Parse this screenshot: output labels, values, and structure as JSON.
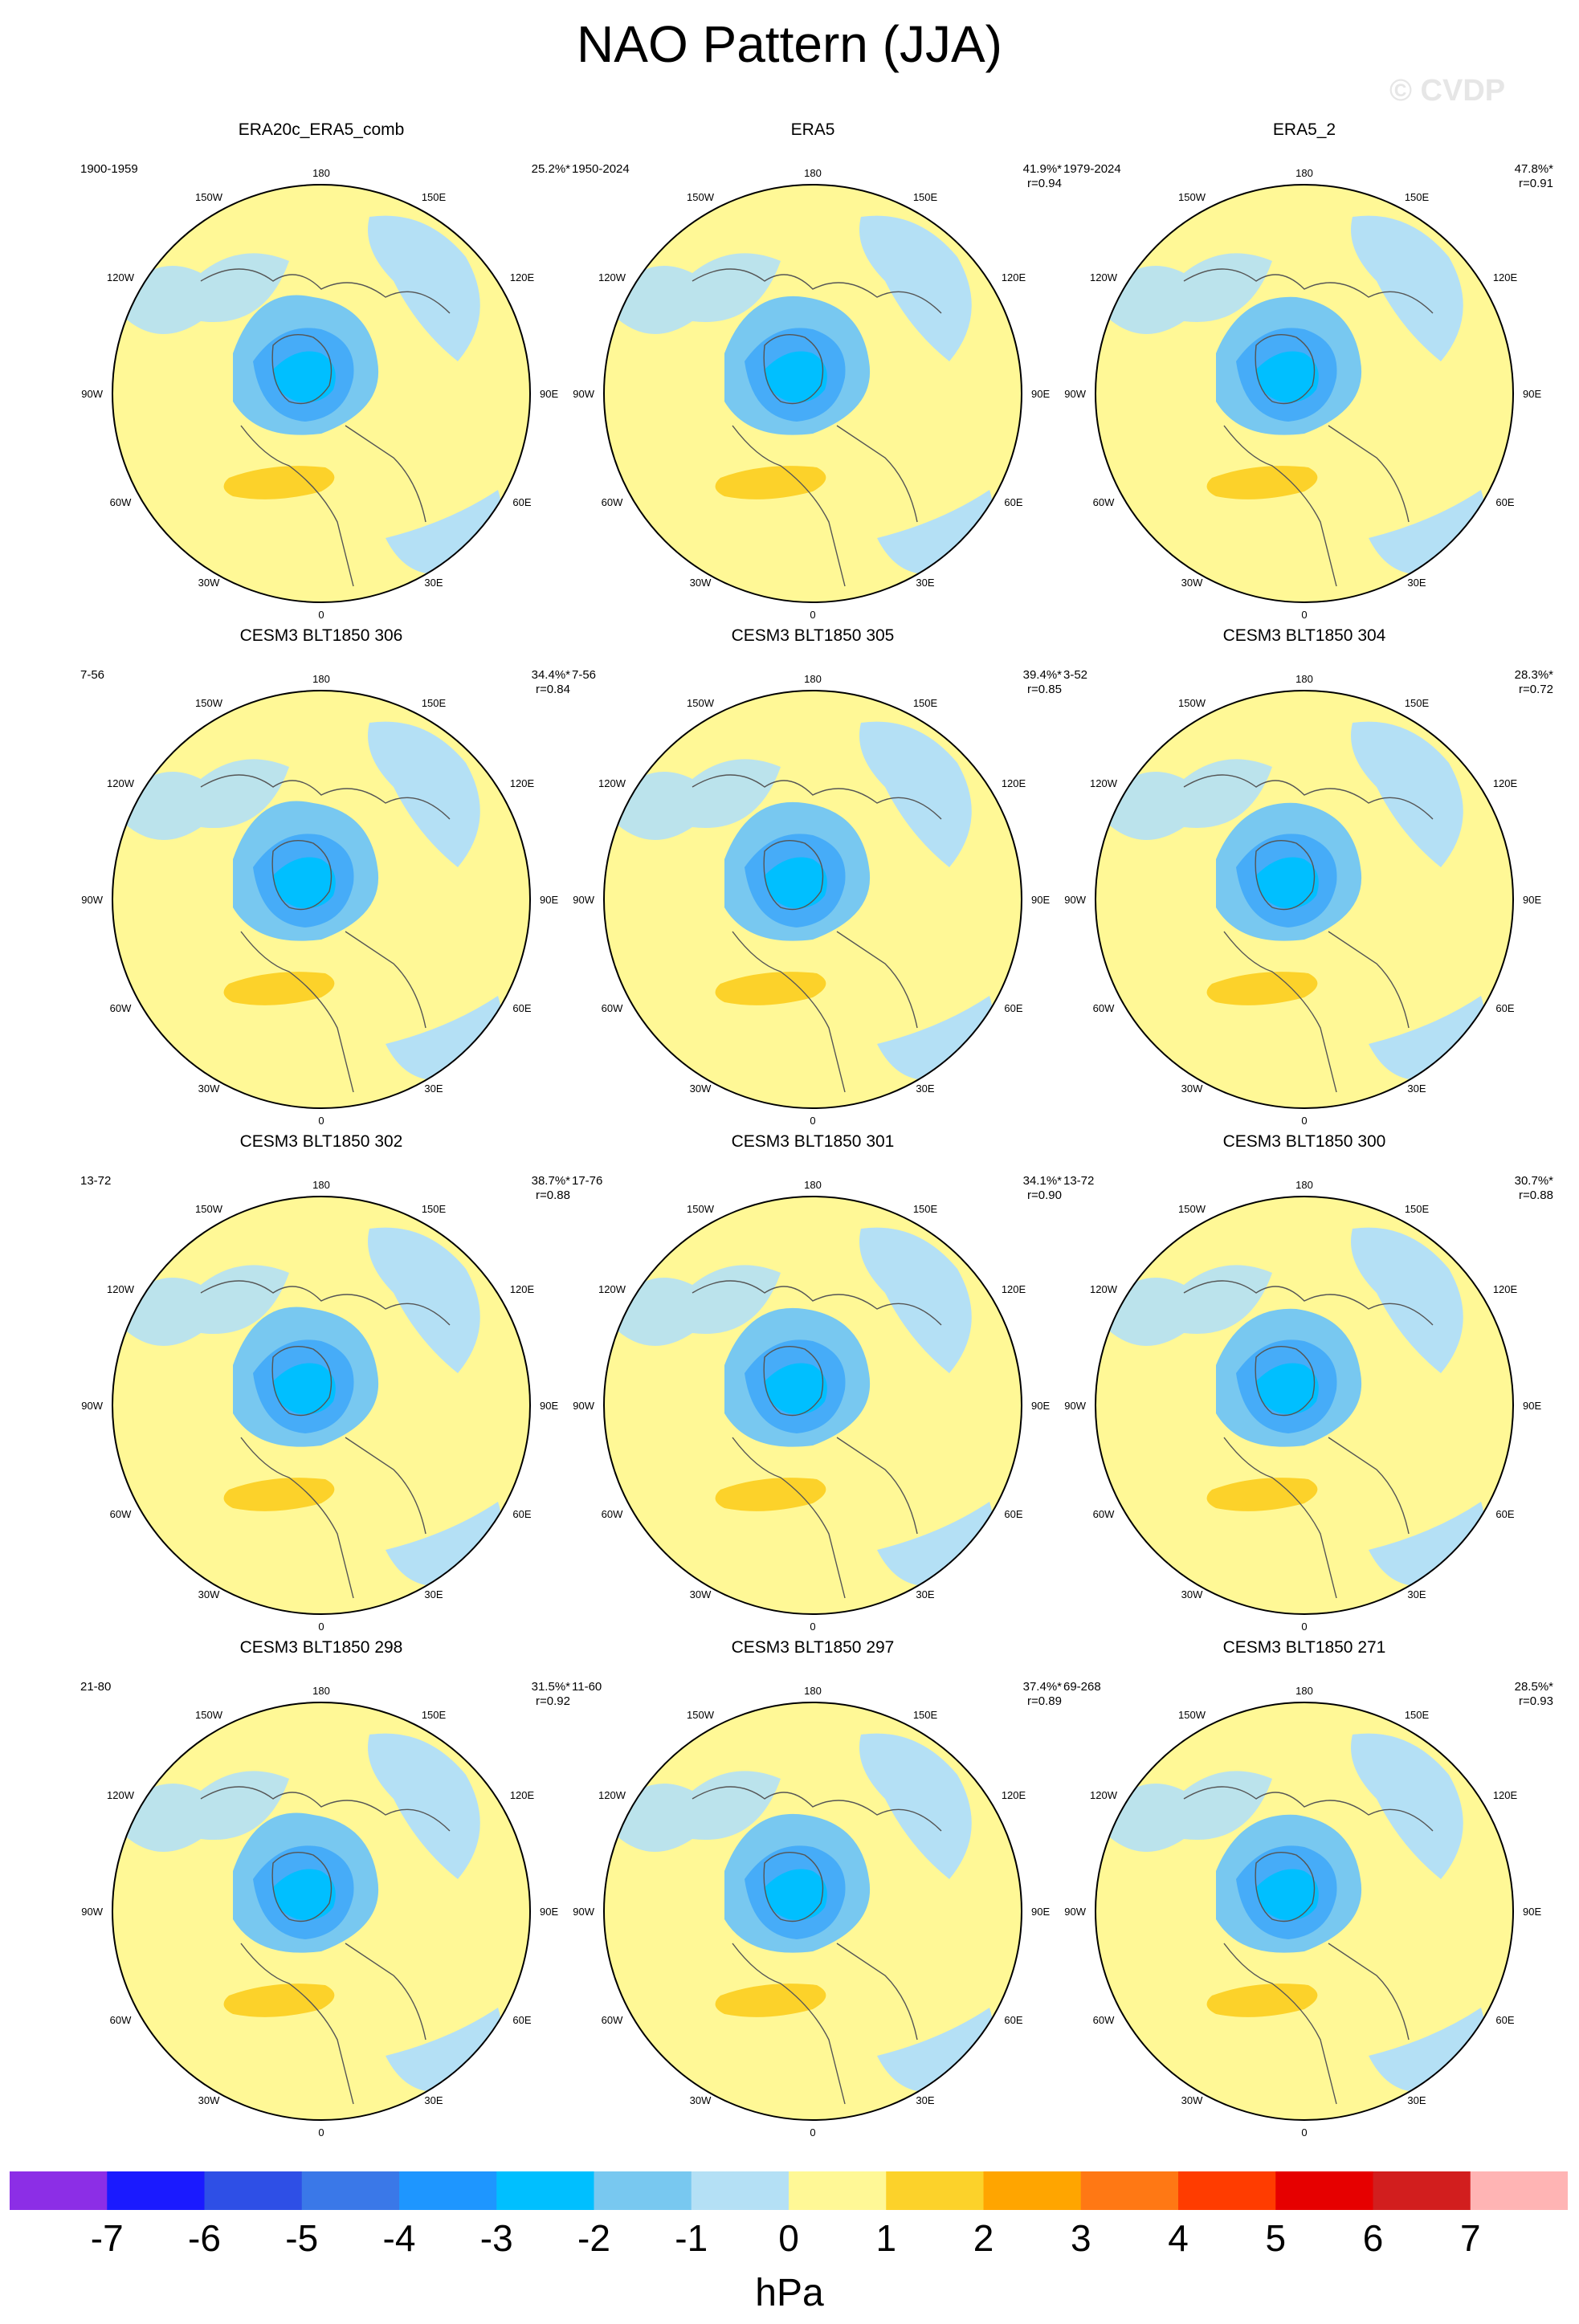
{
  "figure": {
    "title": "NAO Pattern (JJA)",
    "watermark": "© CVDP"
  },
  "map_labels": {
    "lon_180": "180",
    "lon_150w": "150W",
    "lon_150e": "150E",
    "lon_120w": "120W",
    "lon_120e": "120E",
    "lon_90w": "90W",
    "lon_90e": "90E",
    "lon_60w": "60W",
    "lon_60e": "60E",
    "lon_30w": "30W",
    "lon_30e": "30E",
    "lon_0": "0"
  },
  "panels": [
    {
      "title": "ERA20c_ERA5_comb",
      "years": "1900-1959",
      "pct": "25.2%*",
      "r": ""
    },
    {
      "title": "ERA5",
      "years": "1950-2024",
      "pct": "41.9%*",
      "r": "r=0.94"
    },
    {
      "title": "ERA5_2",
      "years": "1979-2024",
      "pct": "47.8%*",
      "r": "r=0.91"
    },
    {
      "title": "CESM3 BLT1850 306",
      "years": "7-56",
      "pct": "34.4%*",
      "r": "r=0.84"
    },
    {
      "title": "CESM3 BLT1850 305",
      "years": "7-56",
      "pct": "39.4%*",
      "r": "r=0.85"
    },
    {
      "title": "CESM3 BLT1850 304",
      "years": "3-52",
      "pct": "28.3%*",
      "r": "r=0.72"
    },
    {
      "title": "CESM3 BLT1850 302",
      "years": "13-72",
      "pct": "38.7%*",
      "r": "r=0.88"
    },
    {
      "title": "CESM3 BLT1850 301",
      "years": "17-76",
      "pct": "34.1%*",
      "r": "r=0.90"
    },
    {
      "title": "CESM3 BLT1850 300",
      "years": "13-72",
      "pct": "30.7%*",
      "r": "r=0.88"
    },
    {
      "title": "CESM3 BLT1850 298",
      "years": "21-80",
      "pct": "31.5%*",
      "r": "r=0.92"
    },
    {
      "title": "CESM3 BLT1850 297",
      "years": "11-60",
      "pct": "37.4%*",
      "r": "r=0.89"
    },
    {
      "title": "CESM3 BLT1850 271",
      "years": "69-268",
      "pct": "28.5%*",
      "r": "r=0.93"
    }
  ],
  "colorbar": {
    "unit": "hPa",
    "ticks": [
      "-7",
      "-6",
      "-5",
      "-4",
      "-3",
      "-2",
      "-1",
      "0",
      "1",
      "2",
      "3",
      "4",
      "5",
      "6",
      "7"
    ],
    "colors": [
      "#8c2ee6",
      "#1a1aff",
      "#2e4fe6",
      "#3a78e8",
      "#1e96ff",
      "#00bfff",
      "#78c8f0",
      "#b4e0f5",
      "#fff896",
      "#fcd22a",
      "#ffa500",
      "#ff7814",
      "#ff3c00",
      "#e60000",
      "#d21e1e",
      "#ffb4b4"
    ]
  }
}
